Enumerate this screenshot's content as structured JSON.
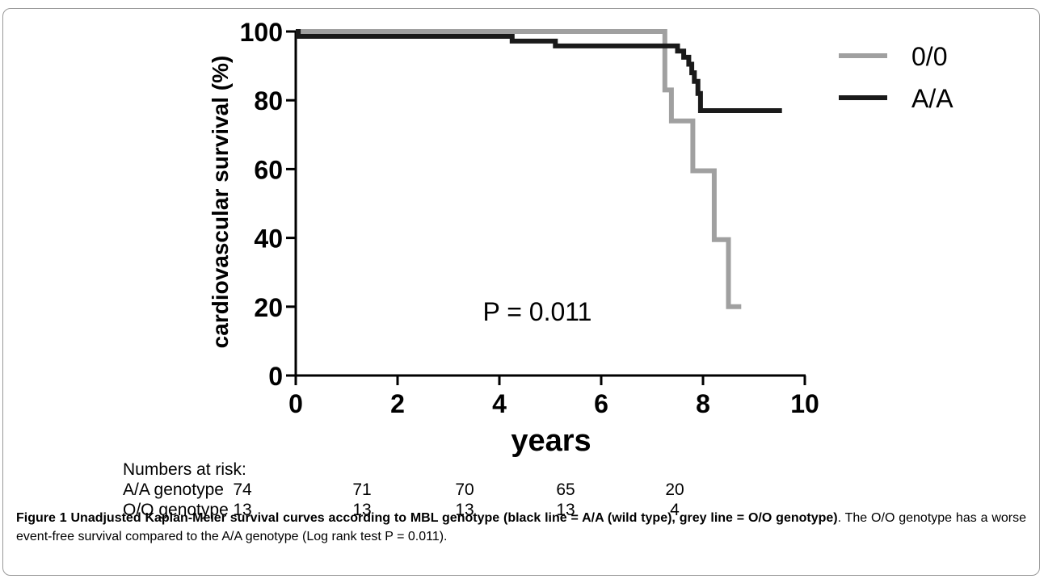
{
  "chart_data": {
    "type": "line",
    "step": true,
    "ylabel": "cardiovascular survival (%)",
    "xlabel": "years",
    "xlim": [
      0,
      10
    ],
    "ylim": [
      0,
      100
    ],
    "xticks": [
      "0",
      "2",
      "4",
      "6",
      "8",
      "10"
    ],
    "yticks": [
      "0",
      "20",
      "40",
      "60",
      "80",
      "100"
    ],
    "grid": false,
    "legend_position": "top-right",
    "annotation": "P = 0.011",
    "series": [
      {
        "name": "0/0",
        "color": "#a0a0a0",
        "x": [
          0,
          7.25,
          7.25,
          7.38,
          7.38,
          7.8,
          7.8,
          8.22,
          8.22,
          8.5,
          8.5,
          8.75
        ],
        "y": [
          100,
          100,
          83,
          83,
          74,
          74,
          59.5,
          59.5,
          39.5,
          39.5,
          20,
          20
        ]
      },
      {
        "name": "A/A",
        "color": "#1a1a1a",
        "x": [
          0,
          0.05,
          0.05,
          4.25,
          4.25,
          5.1,
          5.1,
          7.5,
          7.5,
          7.62,
          7.62,
          7.72,
          7.72,
          7.78,
          7.78,
          7.83,
          7.83,
          7.9,
          7.9,
          7.95,
          7.95,
          9.55
        ],
        "y": [
          100,
          100,
          98.6,
          98.6,
          97.2,
          97.2,
          95.8,
          95.8,
          94.3,
          94.3,
          92.5,
          92.5,
          90.5,
          90.5,
          88,
          88,
          85.5,
          85.5,
          82,
          82,
          77,
          77
        ]
      }
    ]
  },
  "risk_table": {
    "header": "Numbers at risk:",
    "rows": [
      {
        "label": "A/A genotype",
        "values": [
          "74",
          "71",
          "70",
          "65",
          "20"
        ]
      },
      {
        "label": "O/O genotype",
        "values": [
          "13",
          "13",
          "13",
          "13",
          "4"
        ]
      }
    ]
  },
  "caption": {
    "bold": "Figure 1 Unadjusted Kaplan-Meier survival curves according to MBL genotype (black line = A/A (wild type), grey line = O/O genotype)",
    "text": ". The O/O genotype has a worse event-free survival compared to the A/A genotype (Log rank test P = 0.011)."
  }
}
